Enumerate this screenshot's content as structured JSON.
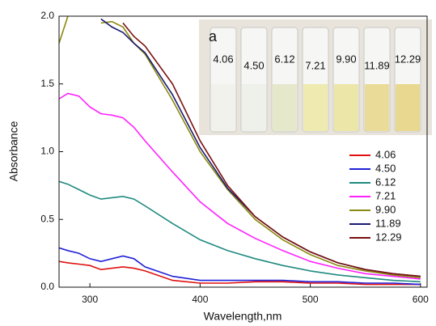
{
  "chart_data": {
    "type": "line",
    "x_label": "Wavelength,nm",
    "y_label": "Absorbance",
    "x": [
      272,
      280,
      290,
      300,
      310,
      320,
      330,
      340,
      350,
      375,
      400,
      425,
      450,
      475,
      500,
      525,
      550,
      575,
      600
    ],
    "xlim": [
      272,
      606
    ],
    "xticks": [
      300,
      400,
      500,
      600
    ],
    "ylim": [
      0,
      2.0
    ],
    "yticks": [
      {
        "value": 0,
        "label": "0.0"
      },
      {
        "value": 0.5,
        "label": "0.5"
      },
      {
        "value": 1.0,
        "label": "1.0"
      },
      {
        "value": 1.5,
        "label": "1.5"
      },
      {
        "value": 2.0,
        "label": "2.0"
      }
    ],
    "legend": "right",
    "series": [
      {
        "name": "4.06",
        "color": "#e01010",
        "values": [
          0.19,
          0.18,
          0.17,
          0.16,
          0.13,
          0.14,
          0.15,
          0.14,
          0.12,
          0.05,
          0.03,
          0.03,
          0.04,
          0.04,
          0.03,
          0.03,
          0.02,
          0.02,
          0.02
        ]
      },
      {
        "name": "4.50",
        "color": "#2020d8",
        "values": [
          0.29,
          0.27,
          0.25,
          0.21,
          0.19,
          0.21,
          0.23,
          0.21,
          0.15,
          0.08,
          0.05,
          0.05,
          0.05,
          0.05,
          0.04,
          0.04,
          0.03,
          0.03,
          0.02
        ]
      },
      {
        "name": "6.12",
        "color": "#1f8a80",
        "values": [
          0.78,
          0.76,
          0.72,
          0.68,
          0.65,
          0.66,
          0.67,
          0.65,
          0.6,
          0.47,
          0.35,
          0.27,
          0.21,
          0.16,
          0.12,
          0.09,
          0.07,
          0.05,
          0.04
        ]
      },
      {
        "name": "7.21",
        "color": "#ff20ff",
        "values": [
          1.39,
          1.43,
          1.41,
          1.33,
          1.28,
          1.27,
          1.25,
          1.18,
          1.08,
          0.85,
          0.63,
          0.47,
          0.36,
          0.27,
          0.19,
          0.14,
          0.1,
          0.08,
          0.06
        ]
      },
      {
        "name": "9.90",
        "color": "#8a8a10",
        "values": [
          1.8,
          2.0,
          null,
          null,
          1.95,
          1.96,
          1.92,
          1.8,
          1.72,
          1.38,
          1.0,
          0.72,
          0.5,
          0.35,
          0.24,
          0.16,
          0.12,
          0.09,
          0.07
        ]
      },
      {
        "name": "11.89",
        "color": "#1a1a70",
        "values": [
          null,
          null,
          null,
          null,
          1.98,
          1.92,
          1.88,
          1.8,
          1.73,
          1.42,
          1.03,
          0.73,
          0.52,
          0.37,
          0.26,
          0.18,
          0.13,
          0.1,
          0.08
        ]
      },
      {
        "name": "12.29",
        "color": "#7a1010",
        "values": [
          null,
          null,
          null,
          null,
          null,
          null,
          1.95,
          1.85,
          1.78,
          1.5,
          1.08,
          0.75,
          0.52,
          0.37,
          0.26,
          0.18,
          0.13,
          0.1,
          0.08
        ]
      }
    ],
    "inset_tag": "a",
    "inset_labels": [
      "4.06",
      "4.50",
      "6.12",
      "7.21",
      "9.90",
      "11.89",
      "12.29"
    ]
  }
}
